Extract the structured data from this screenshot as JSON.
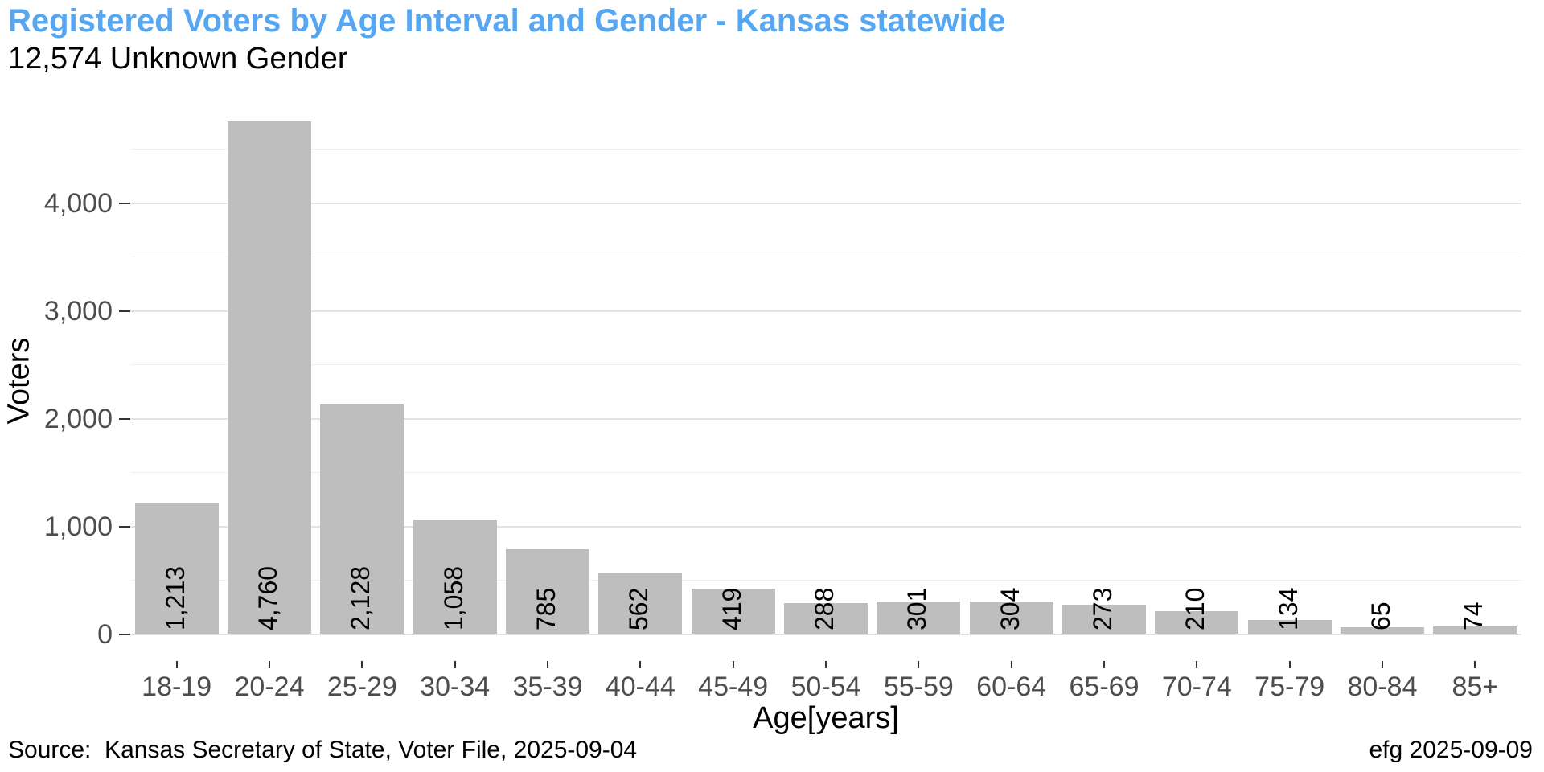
{
  "header": {
    "title": "Registered Voters by Age Interval and Gender - Kansas statewide",
    "subtitle": "12,574 Unknown Gender"
  },
  "chart_data": {
    "type": "bar",
    "title": "Registered Voters by Age Interval and Gender - Kansas statewide",
    "subtitle": "12,574 Unknown Gender",
    "categories": [
      "18-19",
      "20-24",
      "25-29",
      "30-34",
      "35-39",
      "40-44",
      "45-49",
      "50-54",
      "55-59",
      "60-64",
      "65-69",
      "70-74",
      "75-79",
      "80-84",
      "85+"
    ],
    "values": [
      1213,
      4760,
      2128,
      1058,
      785,
      562,
      419,
      288,
      301,
      304,
      273,
      210,
      134,
      65,
      74
    ],
    "value_labels": [
      "1,213",
      "4,760",
      "2,128",
      "1,058",
      "785",
      "562",
      "419",
      "288",
      "301",
      "304",
      "273",
      "210",
      "134",
      "65",
      "74"
    ],
    "xlabel": "Age[years]",
    "ylabel": "Voters",
    "ylim": [
      0,
      5010
    ],
    "yticks": [
      0,
      1000,
      2000,
      3000,
      4000
    ],
    "ytick_labels": [
      "0",
      "1,000",
      "2,000",
      "3,000",
      "4,000"
    ],
    "minor_yticks": [
      500,
      1500,
      2500,
      3500,
      4500
    ],
    "grid": true,
    "legend": "none",
    "bar_color": "#BEBEBE",
    "total": "12,574"
  },
  "caption": {
    "source": "Source:  Kansas Secretary of State, Voter File, 2025-09-04",
    "credit": "efg 2025-09-09"
  },
  "colors": {
    "title": "#56A6F2",
    "bar": "#BEBEBE",
    "grid_major": "#E4E4E4",
    "grid_minor": "#F0F0F0",
    "axis_text": "#4D4D4D",
    "tick_mark": "#333333"
  }
}
